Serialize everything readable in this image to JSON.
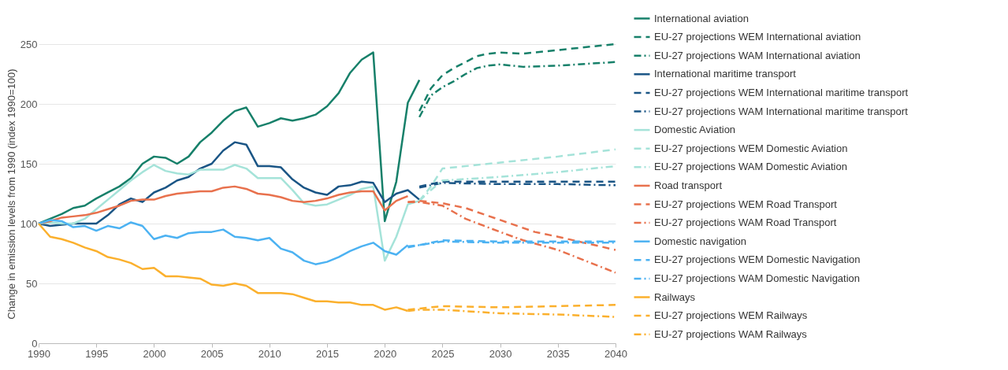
{
  "chart_data": {
    "type": "line",
    "ylabel": "Change in emission levels from 1990 (index 1990=100)",
    "xlim": [
      1990,
      2040
    ],
    "xticks": [
      1990,
      1995,
      2000,
      2005,
      2010,
      2015,
      2020,
      2025,
      2030,
      2035,
      2040
    ],
    "ylim": [
      0,
      250
    ],
    "yticks": [
      0,
      50,
      100,
      150,
      200,
      250
    ],
    "grid": "y",
    "legend": "right",
    "series": [
      {
        "name": "International aviation",
        "color": "#17806a",
        "line_style": "solid",
        "x": [
          1990,
          1991,
          1992,
          1993,
          1994,
          1995,
          1996,
          1997,
          1998,
          1999,
          2000,
          2001,
          2002,
          2003,
          2004,
          2005,
          2006,
          2007,
          2008,
          2009,
          2010,
          2011,
          2012,
          2013,
          2014,
          2015,
          2016,
          2017,
          2018,
          2019,
          2020,
          2021,
          2022,
          2023
        ],
        "values": [
          100,
          104,
          108,
          113,
          115,
          121,
          126,
          131,
          138,
          150,
          156,
          155,
          150,
          156,
          168,
          176,
          186,
          194,
          197,
          181,
          184,
          188,
          186,
          188,
          191,
          198,
          209,
          226,
          237,
          243,
          102,
          135,
          201,
          220
        ]
      },
      {
        "name": "EU-27 projections WEM International aviation",
        "color": "#17806a",
        "line_style": "dashed",
        "x": [
          2023,
          2024,
          2025,
          2026,
          2027,
          2028,
          2029,
          2030,
          2032,
          2035,
          2040
        ],
        "values": [
          194,
          213,
          224,
          230,
          235,
          240,
          242,
          243,
          242,
          245,
          250
        ]
      },
      {
        "name": "EU-27 projections WAM International aviation",
        "color": "#17806a",
        "line_style": "dashdot",
        "x": [
          2023,
          2024,
          2025,
          2026,
          2027,
          2028,
          2029,
          2030,
          2032,
          2035,
          2040
        ],
        "values": [
          189,
          207,
          214,
          219,
          225,
          230,
          232,
          233,
          231,
          232,
          235
        ]
      },
      {
        "name": "International maritime transport",
        "color": "#1a5585",
        "line_style": "solid",
        "x": [
          1990,
          1991,
          1992,
          1993,
          1994,
          1995,
          1996,
          1997,
          1998,
          1999,
          2000,
          2001,
          2002,
          2003,
          2004,
          2005,
          2006,
          2007,
          2008,
          2009,
          2010,
          2011,
          2012,
          2013,
          2014,
          2015,
          2016,
          2017,
          2018,
          2019,
          2020,
          2021,
          2022,
          2023
        ],
        "values": [
          100,
          98,
          99,
          100,
          100,
          100,
          107,
          116,
          121,
          118,
          126,
          130,
          136,
          139,
          146,
          150,
          161,
          168,
          166,
          148,
          148,
          147,
          137,
          130,
          126,
          124,
          131,
          132,
          135,
          134,
          118,
          125,
          128,
          120
        ]
      },
      {
        "name": "EU-27 projections WEM International maritime transport",
        "color": "#1a5585",
        "line_style": "dashed",
        "x": [
          2023,
          2025,
          2030,
          2035,
          2040
        ],
        "values": [
          131,
          135,
          135,
          135,
          135
        ]
      },
      {
        "name": "EU-27 projections WAM International maritime transport",
        "color": "#1a5585",
        "line_style": "dashdot",
        "x": [
          2023,
          2025,
          2030,
          2035,
          2040
        ],
        "values": [
          130,
          134,
          133,
          133,
          132
        ]
      },
      {
        "name": "Domestic Aviation",
        "color": "#a5e3d9",
        "line_style": "solid",
        "x": [
          1990,
          1991,
          1992,
          1993,
          1994,
          1995,
          1996,
          1997,
          1998,
          1999,
          2000,
          2001,
          2002,
          2003,
          2004,
          2005,
          2006,
          2007,
          2008,
          2009,
          2010,
          2011,
          2012,
          2013,
          2014,
          2015,
          2016,
          2017,
          2018,
          2019,
          2020,
          2021,
          2022,
          2023
        ],
        "values": [
          100,
          101,
          100,
          100,
          104,
          112,
          120,
          128,
          136,
          143,
          149,
          144,
          142,
          141,
          145,
          145,
          145,
          149,
          146,
          138,
          138,
          138,
          128,
          117,
          115,
          116,
          120,
          124,
          129,
          131,
          69,
          89,
          116,
          119
        ]
      },
      {
        "name": "EU-27 projections WEM Domestic Aviation",
        "color": "#a5e3d9",
        "line_style": "dashed",
        "x": [
          2023,
          2024,
          2025,
          2030,
          2035,
          2040
        ],
        "values": [
          119,
          131,
          146,
          151,
          156,
          162
        ]
      },
      {
        "name": "EU-27 projections WAM Domestic Aviation",
        "color": "#a5e3d9",
        "line_style": "dashdot",
        "x": [
          2023,
          2024,
          2025,
          2030,
          2035,
          2040
        ],
        "values": [
          119,
          128,
          136,
          139,
          143,
          148
        ]
      },
      {
        "name": "Road transport",
        "color": "#e8714d",
        "line_style": "solid",
        "x": [
          1990,
          1991,
          1992,
          1993,
          1994,
          1995,
          1996,
          1997,
          1998,
          1999,
          2000,
          2001,
          2002,
          2003,
          2004,
          2005,
          2006,
          2007,
          2008,
          2009,
          2010,
          2011,
          2012,
          2013,
          2014,
          2015,
          2016,
          2017,
          2018,
          2019,
          2020,
          2021,
          2022
        ],
        "values": [
          100,
          102,
          105,
          106,
          107,
          109,
          112,
          115,
          119,
          120,
          120,
          123,
          125,
          126,
          127,
          127,
          130,
          131,
          129,
          125,
          124,
          122,
          119,
          118,
          119,
          121,
          124,
          126,
          127,
          127,
          111,
          119,
          123
        ]
      },
      {
        "name": "EU-27 projections WEM Road Transport",
        "color": "#e8714d",
        "line_style": "dashed",
        "x": [
          2022,
          2023,
          2025,
          2027,
          2030,
          2033,
          2035,
          2040
        ],
        "values": [
          118,
          119,
          117,
          113,
          103,
          93,
          89,
          78
        ]
      },
      {
        "name": "EU-27 projections WAM Road Transport",
        "color": "#e8714d",
        "line_style": "dashdot",
        "x": [
          2022,
          2023,
          2025,
          2027,
          2030,
          2032,
          2035,
          2040
        ],
        "values": [
          118,
          118,
          115,
          104,
          93,
          86,
          78,
          59
        ]
      },
      {
        "name": "Domestic navigation",
        "color": "#4cb2f2",
        "line_style": "solid",
        "x": [
          1990,
          1991,
          1992,
          1993,
          1994,
          1995,
          1996,
          1997,
          1998,
          1999,
          2000,
          2001,
          2002,
          2003,
          2004,
          2005,
          2006,
          2007,
          2008,
          2009,
          2010,
          2011,
          2012,
          2013,
          2014,
          2015,
          2016,
          2017,
          2018,
          2019,
          2020,
          2021,
          2022
        ],
        "values": [
          100,
          103,
          102,
          97,
          98,
          94,
          98,
          96,
          101,
          98,
          87,
          90,
          88,
          92,
          93,
          93,
          95,
          89,
          88,
          86,
          88,
          79,
          76,
          69,
          66,
          68,
          72,
          77,
          81,
          84,
          77,
          74,
          82
        ]
      },
      {
        "name": "EU-27 projections WEM Domestic Navigation",
        "color": "#4cb2f2",
        "line_style": "dashed",
        "x": [
          2022,
          2023,
          2025,
          2030,
          2035,
          2040
        ],
        "values": [
          81,
          82,
          86,
          85,
          85,
          85
        ]
      },
      {
        "name": "EU-27 projections WAM Domestic Navigation",
        "color": "#4cb2f2",
        "line_style": "dashdot",
        "x": [
          2022,
          2023,
          2025,
          2030,
          2035,
          2040
        ],
        "values": [
          80,
          82,
          85,
          84,
          84,
          84
        ]
      },
      {
        "name": "Railways",
        "color": "#fbb02d",
        "line_style": "solid",
        "x": [
          1990,
          1991,
          1992,
          1993,
          1994,
          1995,
          1996,
          1997,
          1998,
          1999,
          2000,
          2001,
          2002,
          2003,
          2004,
          2005,
          2006,
          2007,
          2008,
          2009,
          2010,
          2011,
          2012,
          2013,
          2014,
          2015,
          2016,
          2017,
          2018,
          2019,
          2020,
          2021,
          2022
        ],
        "values": [
          100,
          89,
          87,
          84,
          80,
          77,
          72,
          70,
          67,
          62,
          63,
          56,
          56,
          55,
          54,
          49,
          48,
          50,
          48,
          42,
          42,
          42,
          41,
          38,
          35,
          35,
          34,
          34,
          32,
          32,
          28,
          30,
          27
        ]
      },
      {
        "name": "EU-27 projections WEM Railways",
        "color": "#fbb02d",
        "line_style": "dashed",
        "x": [
          2022,
          2023,
          2025,
          2030,
          2035,
          2040
        ],
        "values": [
          28,
          29,
          31,
          30,
          31,
          32
        ]
      },
      {
        "name": "EU-27 projections WAM Railways",
        "color": "#fbb02d",
        "line_style": "dashdot",
        "x": [
          2022,
          2023,
          2025,
          2030,
          2035,
          2040
        ],
        "values": [
          27,
          28,
          28,
          25,
          24,
          22
        ]
      }
    ]
  }
}
